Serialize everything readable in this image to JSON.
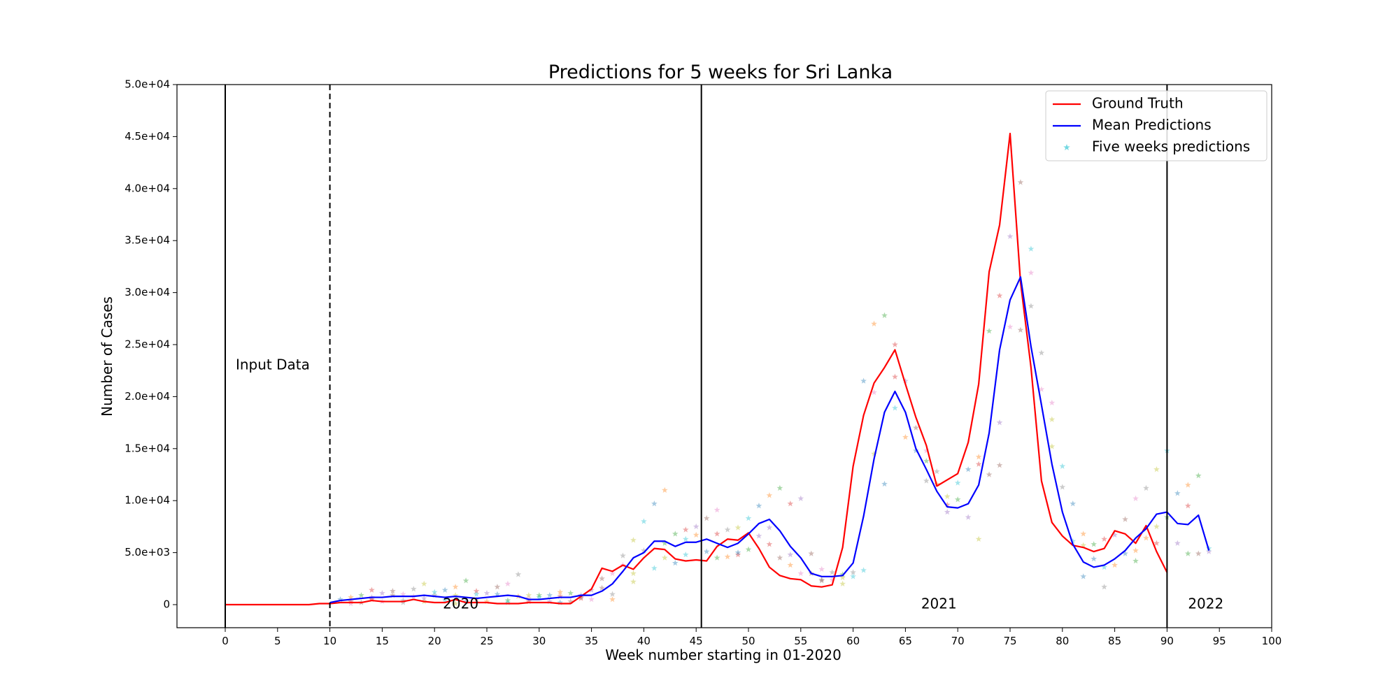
{
  "chart_data": {
    "type": "line",
    "title": "Predictions for 5 weeks for Sri Lanka",
    "xlabel": "Week number starting in 01-2020",
    "ylabel": "Number of Cases",
    "xlim": [
      -4.5,
      100
    ],
    "ylim": [
      -2200,
      50000
    ],
    "xticks": [
      0,
      5,
      10,
      15,
      20,
      25,
      30,
      35,
      40,
      45,
      50,
      55,
      60,
      65,
      70,
      75,
      80,
      85,
      90,
      95,
      100
    ],
    "yticks": [
      0,
      5000,
      10000,
      15000,
      20000,
      25000,
      30000,
      35000,
      40000,
      45000,
      50000
    ],
    "ytick_labels": [
      "0",
      "5.0e+03",
      "1.0e+04",
      "1.5e+04",
      "2.0e+04",
      "2.5e+04",
      "3.0e+04",
      "3.5e+04",
      "4.0e+04",
      "4.5e+04",
      "5.0e+04"
    ],
    "grid": false,
    "legend_position": "top-right",
    "legend": [
      {
        "label": "Ground Truth",
        "kind": "line",
        "color": "#ff0000"
      },
      {
        "label": "Mean Predictions",
        "kind": "line",
        "color": "#0000ff"
      },
      {
        "label": "Five weeks predictions",
        "kind": "star",
        "color": "#17becf"
      }
    ],
    "vlines": [
      {
        "x": 0,
        "style": "solid"
      },
      {
        "x": 10,
        "style": "dashed"
      },
      {
        "x": 45.5,
        "style": "solid"
      },
      {
        "x": 90,
        "style": "solid"
      }
    ],
    "annotations": [
      {
        "text": "Input Data",
        "x": 1,
        "y": 23000
      },
      {
        "text": "2020",
        "x": 20.8,
        "y": 0
      },
      {
        "text": "2021",
        "x": 66.5,
        "y": 0
      },
      {
        "text": "2022",
        "x": 92,
        "y": 0
      }
    ],
    "series": [
      {
        "name": "Ground Truth",
        "color": "#ff0000",
        "style": "line",
        "x": [
          0,
          1,
          2,
          3,
          4,
          5,
          6,
          7,
          8,
          9,
          10,
          11,
          12,
          13,
          14,
          15,
          16,
          17,
          18,
          19,
          20,
          21,
          22,
          23,
          24,
          25,
          26,
          27,
          28,
          29,
          30,
          31,
          32,
          33,
          34,
          35,
          36,
          37,
          38,
          39,
          40,
          41,
          42,
          43,
          44,
          45,
          46,
          47,
          48,
          49,
          50,
          51,
          52,
          53,
          54,
          55,
          56,
          57,
          58,
          59,
          60,
          61,
          62,
          63,
          64,
          65,
          66,
          67,
          68,
          69,
          70,
          71,
          72,
          73,
          74,
          75,
          76,
          77,
          78,
          79,
          80,
          81,
          82,
          83,
          84,
          85,
          86,
          87,
          88,
          89,
          90
        ],
        "y": [
          0,
          0,
          0,
          0,
          0,
          0,
          0,
          0,
          0,
          100,
          100,
          200,
          200,
          200,
          400,
          300,
          300,
          300,
          500,
          300,
          200,
          200,
          500,
          200,
          200,
          200,
          100,
          100,
          100,
          200,
          200,
          200,
          100,
          100,
          800,
          1500,
          3500,
          3200,
          3800,
          3400,
          4500,
          5400,
          5300,
          4400,
          4200,
          4300,
          4200,
          5600,
          6300,
          6200,
          6900,
          5400,
          3600,
          2800,
          2500,
          2400,
          1800,
          1700,
          1900,
          5500,
          13300,
          18200,
          21300,
          22800,
          24500,
          21200,
          18000,
          15300,
          11400,
          12000,
          12600,
          15600,
          21200,
          32000,
          36500,
          45300,
          31000,
          22800,
          11900,
          7900,
          6600,
          5700,
          5500,
          5100,
          5400,
          7100,
          6800,
          5900,
          7600,
          5100,
          3100
        ]
      },
      {
        "name": "Mean Predictions",
        "color": "#0000ff",
        "style": "line",
        "x": [
          10,
          11,
          12,
          13,
          14,
          15,
          16,
          17,
          18,
          19,
          20,
          21,
          22,
          23,
          24,
          25,
          26,
          27,
          28,
          29,
          30,
          31,
          32,
          33,
          34,
          35,
          36,
          37,
          38,
          39,
          40,
          41,
          42,
          43,
          44,
          45,
          46,
          47,
          48,
          49,
          50,
          51,
          52,
          53,
          54,
          55,
          56,
          57,
          58,
          59,
          60,
          61,
          62,
          63,
          64,
          65,
          66,
          67,
          68,
          69,
          70,
          71,
          72,
          73,
          74,
          75,
          76,
          77,
          78,
          79,
          80,
          81,
          82,
          83,
          84,
          85,
          86,
          87,
          88,
          89,
          90,
          91,
          92,
          93,
          94
        ],
        "y": [
          200,
          400,
          500,
          600,
          700,
          700,
          800,
          800,
          800,
          900,
          800,
          700,
          800,
          700,
          600,
          700,
          800,
          900,
          800,
          500,
          500,
          600,
          700,
          700,
          900,
          900,
          1300,
          2000,
          3200,
          4500,
          5000,
          6100,
          6100,
          5600,
          6000,
          6000,
          6300,
          5900,
          5500,
          5900,
          6800,
          7800,
          8200,
          7100,
          5600,
          4500,
          3000,
          2700,
          2700,
          2800,
          4000,
          8500,
          14000,
          18500,
          20500,
          18500,
          15000,
          13000,
          10900,
          9400,
          9300,
          9700,
          11500,
          16500,
          24500,
          29300,
          31500,
          24800,
          19200,
          13500,
          8900,
          5800,
          4100,
          3600,
          3800,
          4400,
          5200,
          6400,
          7300,
          8700,
          8900,
          7800,
          7700,
          8600,
          5200
        ]
      }
    ],
    "scatter_series": {
      "name": "Five weeks predictions",
      "marker": "star",
      "alpha": 0.4,
      "colors": [
        "#1f77b4",
        "#ff7f0e",
        "#2ca02c",
        "#d62728",
        "#9467bd",
        "#8c564b",
        "#e377c2",
        "#7f7f7f",
        "#bcbd22",
        "#17becf"
      ],
      "points": [
        [
          11,
          500
        ],
        [
          12,
          700
        ],
        [
          13,
          900
        ],
        [
          14,
          1400
        ],
        [
          15,
          1100
        ],
        [
          16,
          1300
        ],
        [
          17,
          1000
        ],
        [
          18,
          1500
        ],
        [
          19,
          2000
        ],
        [
          20,
          1200
        ],
        [
          21,
          1400
        ],
        [
          22,
          1700
        ],
        [
          23,
          2300
        ],
        [
          24,
          1300
        ],
        [
          25,
          1100
        ],
        [
          26,
          1700
        ],
        [
          27,
          2000
        ],
        [
          28,
          2900
        ],
        [
          29,
          900
        ],
        [
          30,
          700
        ],
        [
          31,
          900
        ],
        [
          32,
          1200
        ],
        [
          33,
          1100
        ],
        [
          34,
          600
        ],
        [
          35,
          1400
        ],
        [
          36,
          2500
        ],
        [
          37,
          3000
        ],
        [
          38,
          4700
        ],
        [
          39,
          6200
        ],
        [
          40,
          8000
        ],
        [
          41,
          9700
        ],
        [
          42,
          11000
        ],
        [
          43,
          6800
        ],
        [
          44,
          7200
        ],
        [
          45,
          7500
        ],
        [
          46,
          8300
        ],
        [
          47,
          9100
        ],
        [
          48,
          7200
        ],
        [
          49,
          7400
        ],
        [
          50,
          8300
        ],
        [
          51,
          9500
        ],
        [
          52,
          10500
        ],
        [
          53,
          11200
        ],
        [
          54,
          9700
        ],
        [
          55,
          10200
        ],
        [
          56,
          4900
        ],
        [
          57,
          3400
        ],
        [
          58,
          3100
        ],
        [
          59,
          2600
        ],
        [
          60,
          2700
        ],
        [
          61,
          21500
        ],
        [
          62,
          27000
        ],
        [
          63,
          27800
        ],
        [
          64,
          25000
        ],
        [
          65,
          21500
        ],
        [
          66,
          17000
        ],
        [
          67,
          14800
        ],
        [
          68,
          12800
        ],
        [
          69,
          10400
        ],
        [
          70,
          11700
        ],
        [
          71,
          13000
        ],
        [
          72,
          14200
        ],
        [
          73,
          26300
        ],
        [
          74,
          29700
        ],
        [
          75,
          35400
        ],
        [
          76,
          40600
        ],
        [
          77,
          31900
        ],
        [
          78,
          24200
        ],
        [
          79,
          17800
        ],
        [
          80,
          13300
        ],
        [
          81,
          9700
        ],
        [
          82,
          6800
        ],
        [
          83,
          5800
        ],
        [
          84,
          6300
        ],
        [
          85,
          6700
        ],
        [
          86,
          8200
        ],
        [
          87,
          10200
        ],
        [
          88,
          11200
        ],
        [
          89,
          13000
        ],
        [
          90,
          14800
        ],
        [
          91,
          10700
        ],
        [
          92,
          11500
        ],
        [
          93,
          12400
        ],
        [
          12,
          300
        ],
        [
          14,
          700
        ],
        [
          16,
          900
        ],
        [
          18,
          800
        ],
        [
          20,
          900
        ],
        [
          22,
          900
        ],
        [
          24,
          1000
        ],
        [
          26,
          1000
        ],
        [
          28,
          800
        ],
        [
          30,
          900
        ],
        [
          32,
          800
        ],
        [
          34,
          900
        ],
        [
          36,
          1600
        ],
        [
          38,
          3800
        ],
        [
          40,
          5200
        ],
        [
          42,
          4500
        ],
        [
          44,
          4800
        ],
        [
          46,
          5100
        ],
        [
          48,
          4600
        ],
        [
          50,
          5300
        ],
        [
          52,
          5800
        ],
        [
          54,
          4800
        ],
        [
          56,
          3000
        ],
        [
          58,
          2400
        ],
        [
          60,
          3100
        ],
        [
          62,
          14500
        ],
        [
          64,
          18900
        ],
        [
          66,
          14800
        ],
        [
          68,
          11600
        ],
        [
          70,
          10100
        ],
        [
          72,
          13500
        ],
        [
          74,
          17500
        ],
        [
          76,
          26400
        ],
        [
          78,
          20700
        ],
        [
          80,
          11300
        ],
        [
          82,
          5700
        ],
        [
          84,
          3600
        ],
        [
          86,
          4900
        ],
        [
          88,
          6400
        ],
        [
          90,
          8400
        ],
        [
          92,
          9500
        ],
        [
          94,
          5100
        ],
        [
          13,
          200
        ],
        [
          15,
          300
        ],
        [
          17,
          400
        ],
        [
          19,
          300
        ],
        [
          21,
          400
        ],
        [
          23,
          300
        ],
        [
          25,
          300
        ],
        [
          27,
          400
        ],
        [
          29,
          300
        ],
        [
          31,
          300
        ],
        [
          33,
          300
        ],
        [
          35,
          500
        ],
        [
          37,
          1000
        ],
        [
          39,
          3000
        ],
        [
          41,
          3500
        ],
        [
          43,
          4000
        ],
        [
          45,
          6700
        ],
        [
          47,
          4500
        ],
        [
          49,
          4800
        ],
        [
          51,
          6600
        ],
        [
          53,
          4500
        ],
        [
          55,
          3000
        ],
        [
          57,
          2400
        ],
        [
          59,
          2000
        ],
        [
          61,
          3300
        ],
        [
          63,
          11600
        ],
        [
          65,
          16100
        ],
        [
          67,
          13800
        ],
        [
          69,
          9600
        ],
        [
          71,
          8400
        ],
        [
          73,
          12500
        ],
        [
          75,
          26700
        ],
        [
          77,
          28700
        ],
        [
          79,
          15200
        ],
        [
          81,
          6100
        ],
        [
          83,
          4400
        ],
        [
          85,
          3800
        ],
        [
          87,
          4200
        ],
        [
          89,
          5900
        ],
        [
          91,
          5900
        ],
        [
          93,
          4900
        ],
        [
          12,
          100
        ],
        [
          17,
          200
        ],
        [
          22,
          100
        ],
        [
          27,
          200
        ],
        [
          32,
          200
        ],
        [
          37,
          500
        ],
        [
          42,
          5900
        ],
        [
          47,
          6800
        ],
        [
          52,
          7400
        ],
        [
          57,
          2300
        ],
        [
          62,
          20400
        ],
        [
          67,
          11900
        ],
        [
          72,
          6300
        ],
        [
          77,
          34200
        ],
        [
          82,
          2700
        ],
        [
          87,
          5200
        ],
        [
          92,
          4900
        ],
        [
          14,
          500
        ],
        [
          19,
          600
        ],
        [
          24,
          500
        ],
        [
          29,
          600
        ],
        [
          34,
          700
        ],
        [
          39,
          2200
        ],
        [
          44,
          6300
        ],
        [
          49,
          5000
        ],
        [
          54,
          3800
        ],
        [
          59,
          2900
        ],
        [
          64,
          21900
        ],
        [
          69,
          8900
        ],
        [
          74,
          13400
        ],
        [
          79,
          19400
        ],
        [
          84,
          1700
        ],
        [
          89,
          7500
        ],
        [
          94,
          5400
        ]
      ]
    }
  }
}
